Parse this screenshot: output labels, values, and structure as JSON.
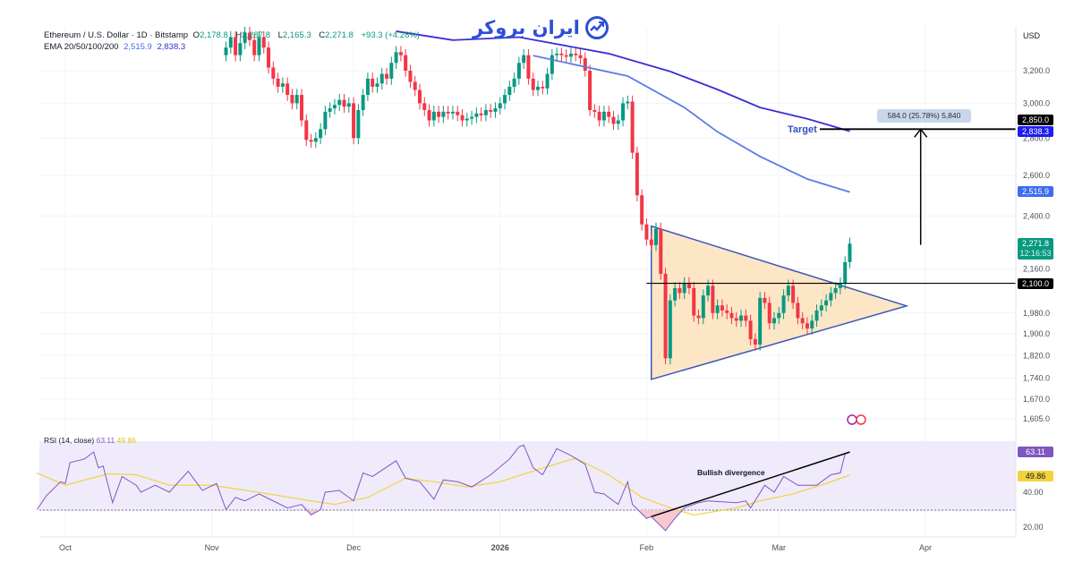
{
  "legend": {
    "symbol": "Ethereum / U.S. Dollar · 1D · Bitstamp",
    "o_label": "O",
    "open": "2,178.8",
    "h_label": "H",
    "high": "2,287.8",
    "l_label": "L",
    "low": "2,165.3",
    "c_label": "C",
    "close": "2,271.8",
    "change": "+93.3 (+4.28%)",
    "ema_label": "EMA 20/50/100/200",
    "ema_val1": "2,515.9",
    "ema_val2": "2,838.3"
  },
  "logo": {
    "text": "ایران بروکر",
    "icon": "chart-trend-icon"
  },
  "price_axis": {
    "currency": "USD",
    "ticks": [
      "3,200.0",
      "3,000.0",
      "2,800.0",
      "2,600.0",
      "2,400.0",
      "2,160.0",
      "1,980.0",
      "1,900.0",
      "1,820.0",
      "1,740.0",
      "1,670.0",
      "1,605.0"
    ],
    "tags": {
      "target": "2,850.0",
      "ema200": "2,838.3",
      "ema100": "2,515.9",
      "last": "2,271.8",
      "countdown": "12:16:53",
      "level": "2,100.0"
    }
  },
  "annotations": {
    "target_label": "Target",
    "measure": "584.0 (25.78%) 5,840",
    "divergence": "Bullish divergence"
  },
  "rsi_legend": {
    "label": "RSI (14, close)",
    "value": "63.11",
    "ma": "49.86"
  },
  "rsi_axis": {
    "ticks": [
      "40.00",
      "20.00"
    ],
    "value_tag": "63.11",
    "ma_tag": "49.86"
  },
  "time_axis": [
    "Oct",
    "Nov",
    "Dec",
    "2026",
    "Feb",
    "Mar",
    "Apr"
  ],
  "colors": {
    "up": "#089981",
    "down": "#f23645",
    "ema100": "#5b7ce8",
    "ema200": "#3a2fd6",
    "rsi": "#7e57c2",
    "rsi_ma": "#f2d33c",
    "triangle_fill": "#fde6c6",
    "triangle_stroke": "#3b57b8"
  },
  "chart_data": [
    {
      "type": "candlestick",
      "scale": "log",
      "ylim": [
        1605,
        3200
      ],
      "start_date": "2025-11-04",
      "closes": [
        3350,
        3420,
        3300,
        3380,
        3450,
        3400,
        3300,
        3420,
        3350,
        3220,
        3150,
        3100,
        3120,
        3050,
        3000,
        3050,
        2900,
        2790,
        2780,
        2800,
        2850,
        2950,
        2970,
        2990,
        3020,
        2980,
        3000,
        2800,
        2960,
        3050,
        3150,
        3100,
        3120,
        3180,
        3150,
        3250,
        3320,
        3300,
        3200,
        3130,
        3080,
        3000,
        2960,
        2900,
        2950,
        2920,
        2950,
        2940,
        2950,
        2930,
        2900,
        2910,
        2920,
        2940,
        2930,
        2960,
        2950,
        2970,
        3000,
        3050,
        3100,
        3150,
        3250,
        3300,
        3150,
        3080,
        3100,
        3090,
        3180,
        3300,
        3310,
        3300,
        3290,
        3310,
        3300,
        3280,
        3200,
        2960,
        2950,
        2900,
        2950,
        2920,
        2880,
        2900,
        3000,
        3010,
        2720,
        2500,
        2360,
        2290,
        2265,
        2340,
        2140,
        1810,
        2030,
        2080,
        2060,
        2100,
        2080,
        1970,
        1960,
        2050,
        2090,
        1980,
        2010,
        1990,
        1980,
        1960,
        1950,
        1970,
        1950,
        1880,
        1860,
        2040,
        2020,
        1940,
        1960,
        1980,
        2050,
        2090,
        2020,
        1960,
        1940,
        1920,
        1950,
        1990,
        2010,
        2030,
        2060,
        2080,
        2100,
        2190,
        2271.8
      ],
      "ema": [
        {
          "name": "EMA 100",
          "value": "2,515.9",
          "points": [
            [
              "2026-01-08",
              3297
            ],
            [
              "2026-01-28",
              3166
            ],
            [
              "2026-02-09",
              2975
            ],
            [
              "2026-02-16",
              2835
            ],
            [
              "2026-02-25",
              2700
            ],
            [
              "2026-03-07",
              2582
            ],
            [
              "2026-03-16",
              2515.9
            ]
          ]
        },
        {
          "name": "EMA 200",
          "value": "2,838.3",
          "points": [
            [
              "2025-12-10",
              3460
            ],
            [
              "2025-12-22",
              3400
            ],
            [
              "2026-01-05",
              3420
            ],
            [
              "2026-01-24",
              3310
            ],
            [
              "2026-02-06",
              3195
            ],
            [
              "2026-02-16",
              3083
            ],
            [
              "2026-02-25",
              2975
            ],
            [
              "2026-03-07",
              2909
            ],
            [
              "2026-03-16",
              2838.3
            ]
          ]
        }
      ],
      "triangle": [
        [
          "2026-02-02",
          2352
        ],
        [
          "2026-03-28",
          2008
        ],
        [
          "2026-02-02",
          1736
        ]
      ],
      "horizontal_level": 2100,
      "target_level": 2850,
      "projection": {
        "from": 2266,
        "to": 2850,
        "date": "2026-03-31"
      }
    },
    {
      "type": "line",
      "title": "RSI (14, close)",
      "ylim": [
        20,
        70
      ],
      "bands": [
        30,
        70
      ],
      "series": [
        {
          "name": "RSI",
          "points": [
            [
              "2025-09-25",
              30
            ],
            [
              "2025-09-27",
              38
            ],
            [
              "2025-09-30",
              46
            ],
            [
              "2025-10-01",
              45
            ],
            [
              "2025-10-02",
              57
            ],
            [
              "2025-10-05",
              59
            ],
            [
              "2025-10-07",
              63
            ],
            [
              "2025-10-08",
              54
            ],
            [
              "2025-10-09",
              55
            ],
            [
              "2025-10-11",
              34
            ],
            [
              "2025-10-13",
              49
            ],
            [
              "2025-10-16",
              44
            ],
            [
              "2025-10-17",
              40
            ],
            [
              "2025-10-20",
              44
            ],
            [
              "2025-10-23",
              40
            ],
            [
              "2025-10-27",
              52
            ],
            [
              "2025-10-30",
              41
            ],
            [
              "2025-11-02",
              45
            ],
            [
              "2025-11-04",
              30
            ],
            [
              "2025-11-06",
              37
            ],
            [
              "2025-11-08",
              35
            ],
            [
              "2025-11-11",
              39
            ],
            [
              "2025-11-14",
              35
            ],
            [
              "2025-11-17",
              31
            ],
            [
              "2025-11-20",
              33
            ],
            [
              "2025-11-22",
              27
            ],
            [
              "2025-11-24",
              30
            ],
            [
              "2025-11-25",
              40
            ],
            [
              "2025-11-28",
              41
            ],
            [
              "2025-12-01",
              35
            ],
            [
              "2025-12-03",
              51
            ],
            [
              "2025-12-05",
              49
            ],
            [
              "2025-12-10",
              58
            ],
            [
              "2025-12-12",
              48
            ],
            [
              "2025-12-15",
              46
            ],
            [
              "2025-12-18",
              36
            ],
            [
              "2025-12-20",
              47
            ],
            [
              "2025-12-23",
              46
            ],
            [
              "2025-12-26",
              43
            ],
            [
              "2025-12-30",
              50
            ],
            [
              "2026-01-03",
              59
            ],
            [
              "2026-01-05",
              66
            ],
            [
              "2026-01-06",
              67
            ],
            [
              "2026-01-08",
              54
            ],
            [
              "2026-01-10",
              50
            ],
            [
              "2026-01-13",
              65
            ],
            [
              "2026-01-16",
              61
            ],
            [
              "2026-01-19",
              56
            ],
            [
              "2026-01-21",
              40
            ],
            [
              "2026-01-23",
              39
            ],
            [
              "2026-01-26",
              33
            ],
            [
              "2026-01-28",
              46
            ],
            [
              "2026-01-29",
              33
            ],
            [
              "2026-02-01",
              25
            ],
            [
              "2026-02-02",
              26
            ],
            [
              "2026-02-05",
              18
            ],
            [
              "2026-02-07",
              25
            ],
            [
              "2026-02-09",
              31
            ],
            [
              "2026-02-12",
              34
            ],
            [
              "2026-02-14",
              35
            ],
            [
              "2026-02-20",
              34
            ],
            [
              "2026-02-22",
              35
            ],
            [
              "2026-02-23",
              31
            ],
            [
              "2026-02-26",
              44
            ],
            [
              "2026-02-28",
              40
            ],
            [
              "2026-03-02",
              49
            ],
            [
              "2026-03-05",
              44
            ],
            [
              "2026-03-07",
              44
            ],
            [
              "2026-03-09",
              44
            ],
            [
              "2026-03-12",
              50
            ],
            [
              "2026-03-14",
              51
            ],
            [
              "2026-03-15",
              62
            ],
            [
              "2026-03-16",
              63.11
            ]
          ]
        },
        {
          "name": "MA",
          "points": [
            [
              "2025-09-25",
              51
            ],
            [
              "2025-10-01",
              44
            ],
            [
              "2025-10-10",
              50.5
            ],
            [
              "2025-10-16",
              50
            ],
            [
              "2025-10-23",
              44
            ],
            [
              "2025-11-01",
              44
            ],
            [
              "2025-11-13",
              39
            ],
            [
              "2025-11-22",
              35
            ],
            [
              "2025-11-27",
              33
            ],
            [
              "2025-12-04",
              37
            ],
            [
              "2025-12-12",
              48
            ],
            [
              "2025-12-18",
              46
            ],
            [
              "2025-12-25",
              43
            ],
            [
              "2026-01-01",
              46
            ],
            [
              "2026-01-09",
              53
            ],
            [
              "2026-01-17",
              59.5
            ],
            [
              "2026-01-24",
              50
            ],
            [
              "2026-01-31",
              37
            ],
            [
              "2026-02-06",
              31
            ],
            [
              "2026-02-11",
              27
            ],
            [
              "2026-02-20",
              31
            ],
            [
              "2026-02-25",
              35
            ],
            [
              "2026-03-04",
              39
            ],
            [
              "2026-03-11",
              45
            ],
            [
              "2026-03-16",
              49.86
            ]
          ]
        }
      ],
      "divergence_line": [
        [
          "2026-02-02",
          26
        ],
        [
          "2026-03-16",
          63
        ]
      ]
    }
  ]
}
